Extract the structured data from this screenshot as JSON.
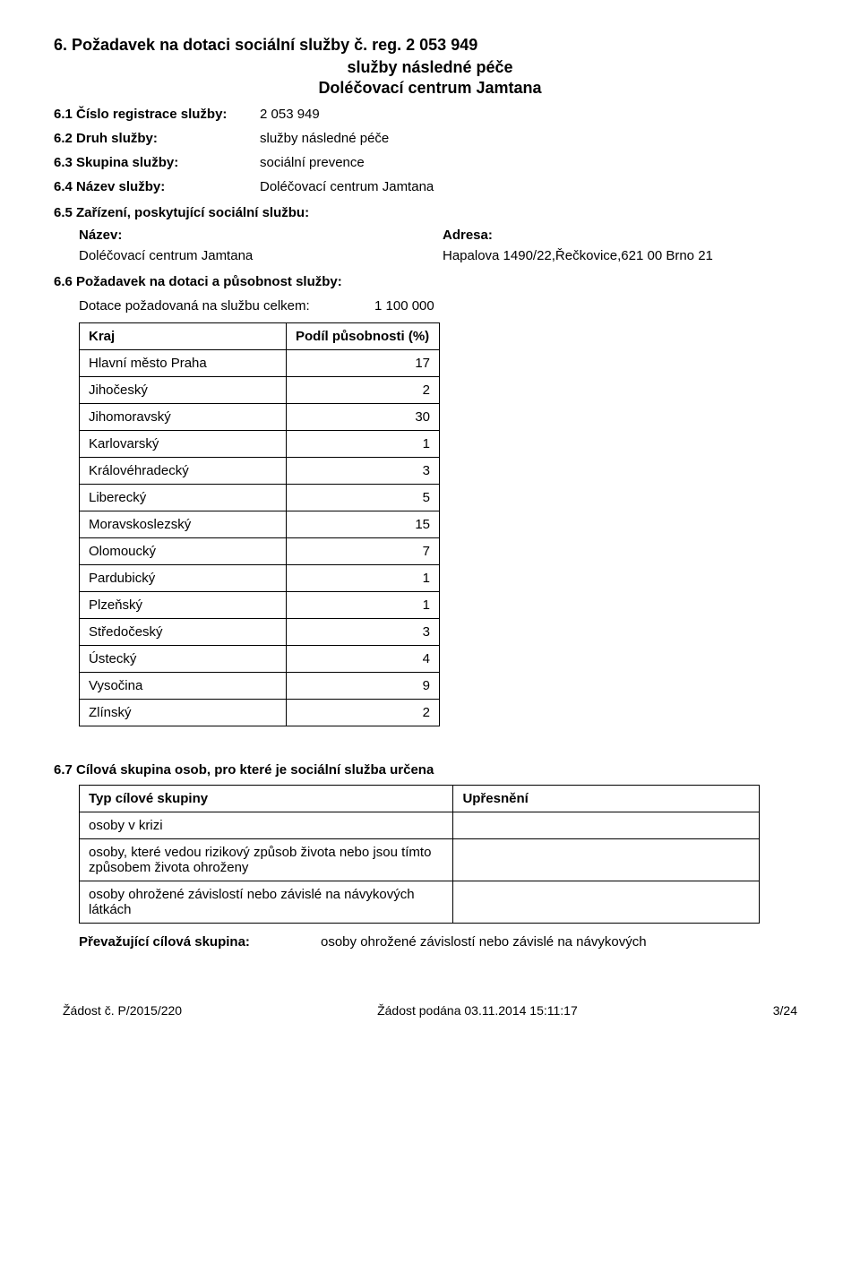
{
  "header": {
    "title": "6. Požadavek na dotaci sociální služby  č. reg. 2 053 949",
    "subtitle1": "služby následné péče",
    "subtitle2": "Doléčovací centrum Jamtana"
  },
  "fields": {
    "f1_label": "6.1  Číslo registrace služby:",
    "f1_value": "2 053 949",
    "f2_label": "6.2  Druh služby:",
    "f2_value": "služby následné péče",
    "f3_label": "6.3  Skupina služby:",
    "f3_value": "sociální prevence",
    "f4_label": "6.4  Název služby:",
    "f4_value": "Doléčovací centrum Jamtana",
    "f5_label": "6.5  Zařízení, poskytující sociální službu:",
    "f5_name_label": "Název:",
    "f5_addr_label": "Adresa:",
    "f5_name_value": "Doléčovací centrum Jamtana",
    "f5_addr_value": "Hapalova 1490/22,Řečkovice,621 00 Brno 21",
    "f6_label": "6.6  Požadavek na dotaci a působnost služby:",
    "f6_dotace_label": "Dotace požadovaná na službu celkem:",
    "f6_dotace_value": "1 100 000",
    "f7_label": "6.7  Cílová skupina osob, pro které je sociální služba určena",
    "prevaz_label": "Převažující cílová skupina:",
    "prevaz_value": "osoby ohrožené závislostí nebo závislé na návykových"
  },
  "kraje_table": {
    "col1": "Kraj",
    "col2": "Podíl působnosti (%)",
    "rows": [
      {
        "name": "Hlavní město Praha",
        "val": "17"
      },
      {
        "name": "Jihočeský",
        "val": "2"
      },
      {
        "name": "Jihomoravský",
        "val": "30"
      },
      {
        "name": "Karlovarský",
        "val": "1"
      },
      {
        "name": "Královéhradecký",
        "val": "3"
      },
      {
        "name": "Liberecký",
        "val": "5"
      },
      {
        "name": "Moravskoslezský",
        "val": "15"
      },
      {
        "name": "Olomoucký",
        "val": "7"
      },
      {
        "name": "Pardubický",
        "val": "1"
      },
      {
        "name": "Plzeňský",
        "val": "1"
      },
      {
        "name": "Středočeský",
        "val": "3"
      },
      {
        "name": "Ústecký",
        "val": "4"
      },
      {
        "name": "Vysočina",
        "val": "9"
      },
      {
        "name": "Zlínský",
        "val": "2"
      }
    ]
  },
  "cilova_table": {
    "col1": "Typ cílové skupiny",
    "col2": "Upřesnění",
    "rows": [
      {
        "typ": "osoby v krizi",
        "up": ""
      },
      {
        "typ": "osoby, které vedou rizikový způsob života nebo jsou tímto způsobem života ohroženy",
        "up": ""
      },
      {
        "typ": "osoby ohrožené závislostí nebo závislé na návykových látkách",
        "up": ""
      }
    ]
  },
  "footer": {
    "left": "Žádost č. P/2015/220",
    "center": "Žádost podána 03.11.2014 15:11:17",
    "right": "3/24"
  }
}
